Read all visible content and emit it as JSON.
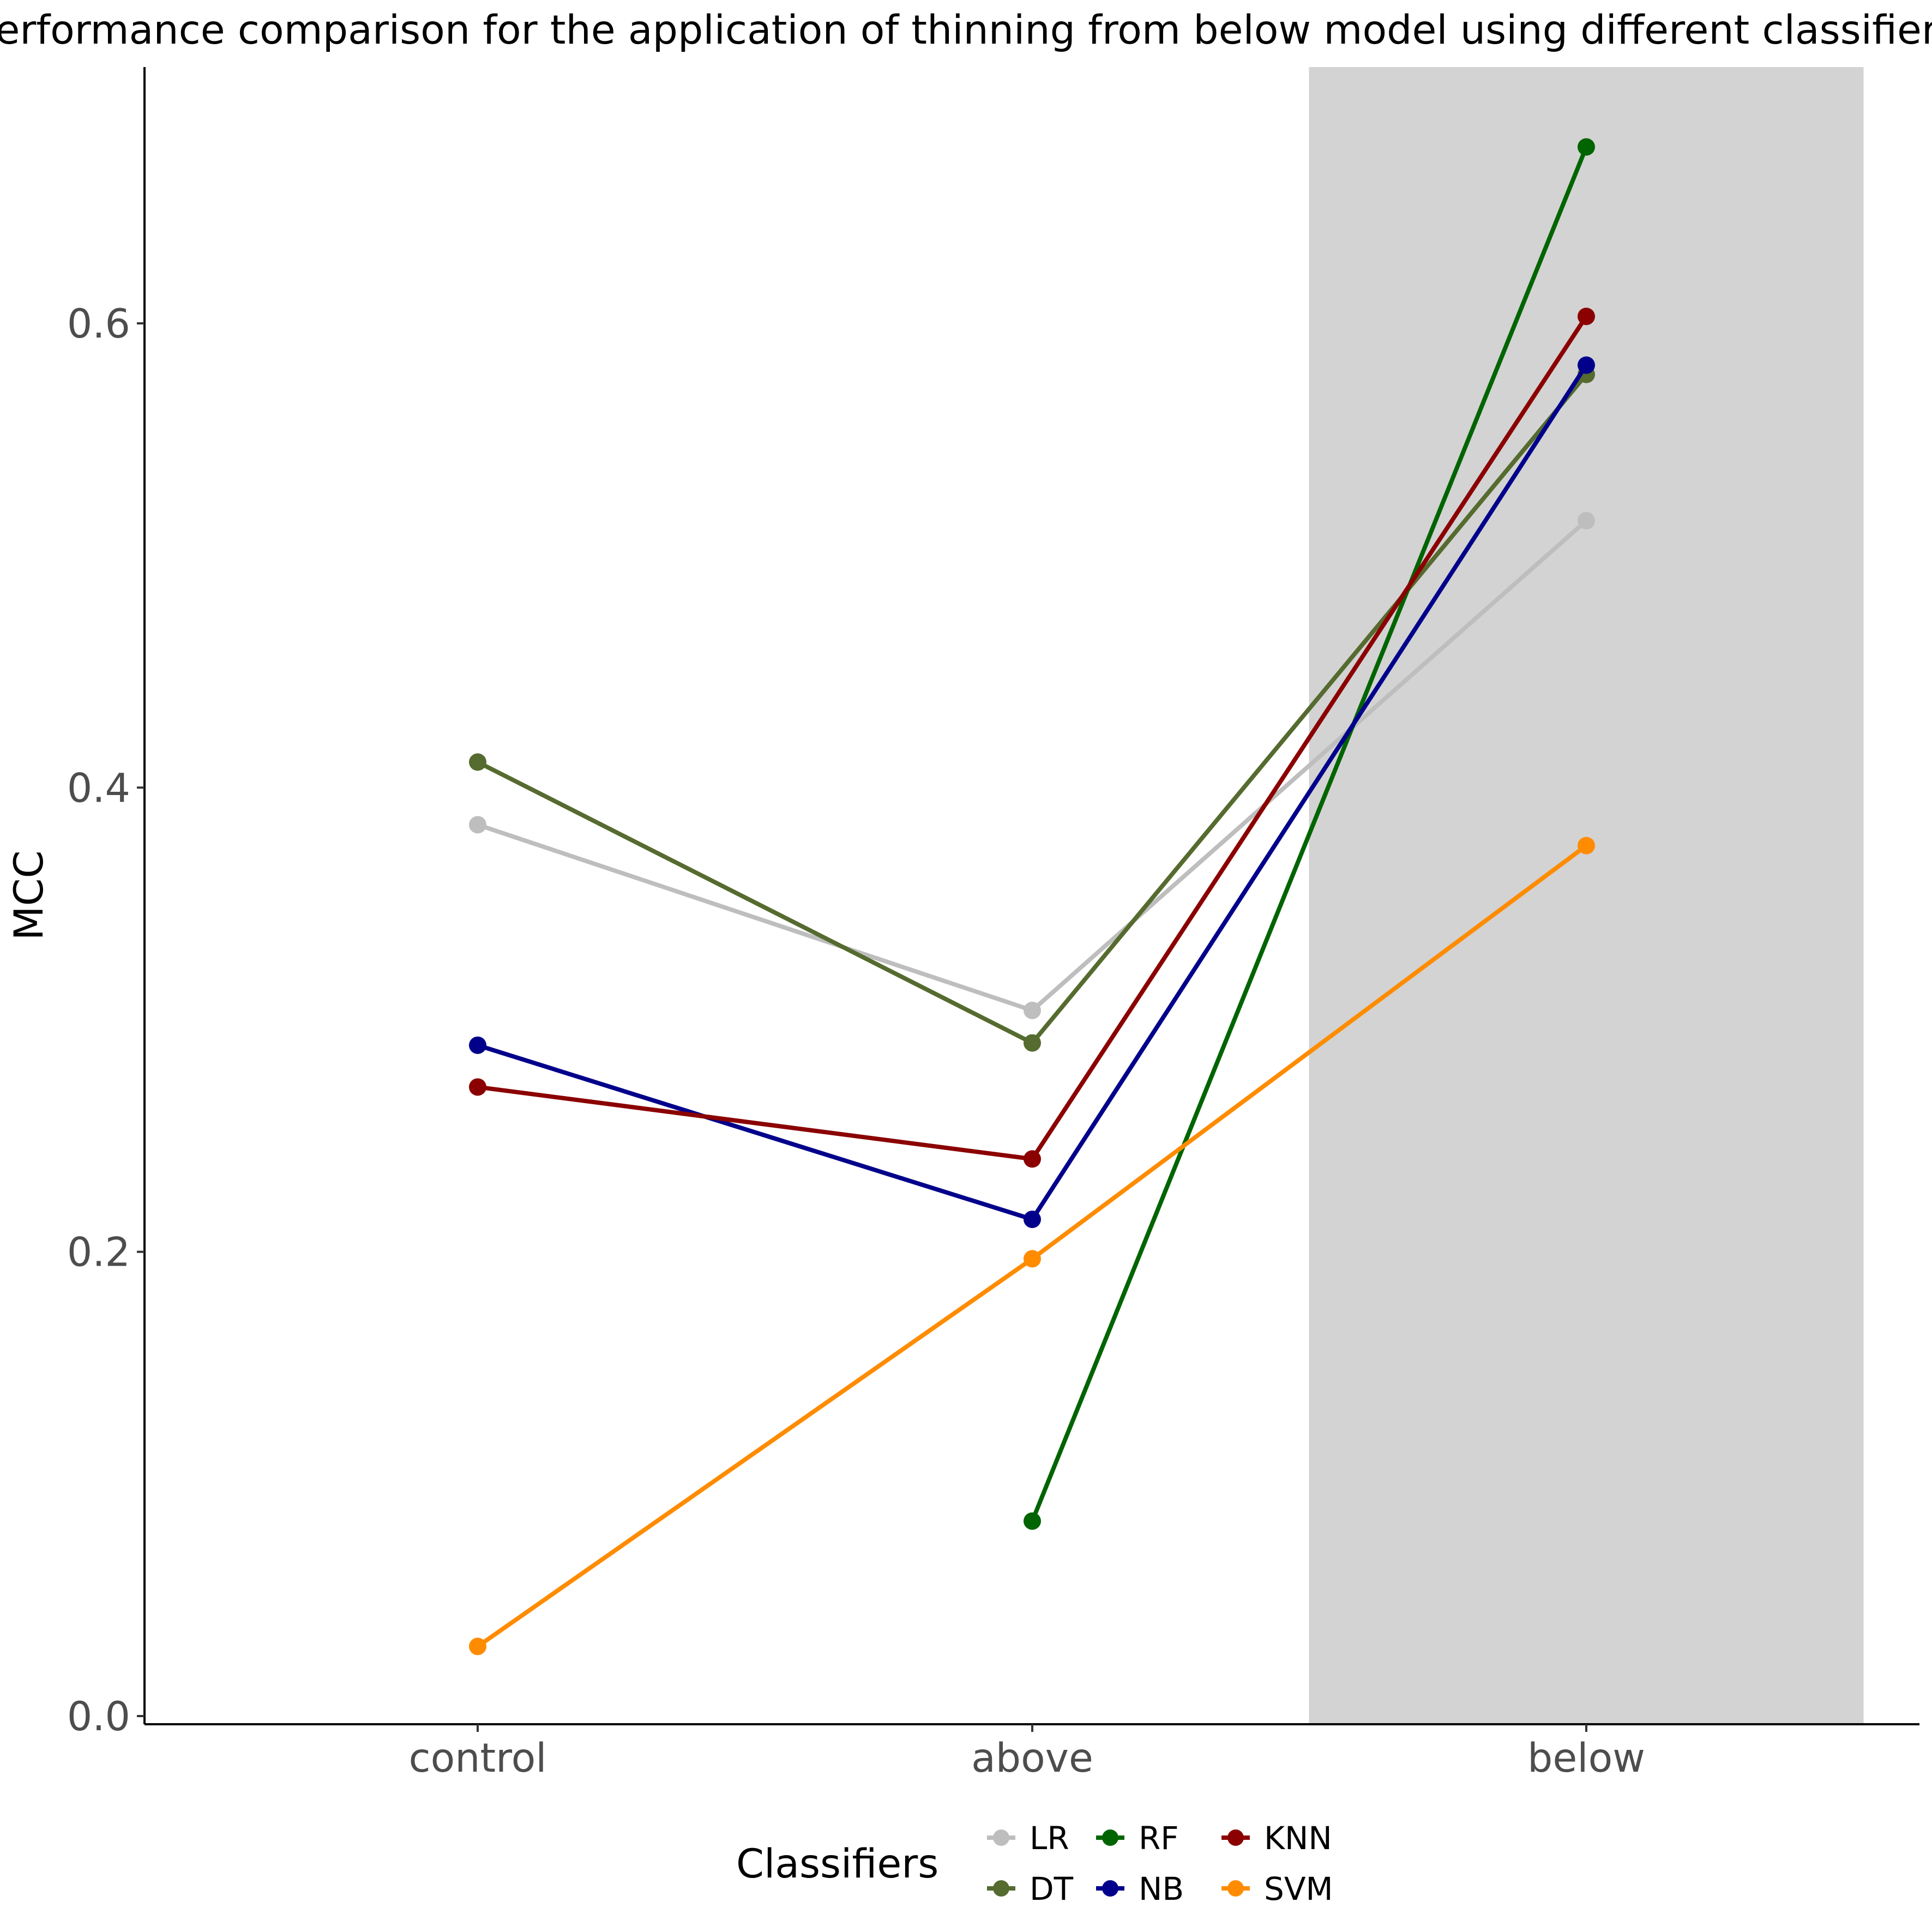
{
  "chart_data": {
    "type": "line",
    "title": "Performance comparison for the application of thinning from below model using different classifiers",
    "xlabel": "",
    "ylabel": "MCC",
    "categories": [
      "control",
      "above",
      "below"
    ],
    "highlighted_category": "below",
    "highlight_color": "#d3d3d3",
    "ylim": [
      0.0,
      0.7
    ],
    "yticks": [
      0.0,
      0.2,
      0.4,
      0.6
    ],
    "ytick_labels": [
      "0.0",
      "0.2",
      "0.4",
      "0.6"
    ],
    "grid": false,
    "legend": {
      "title": "Classifiers",
      "placement": "bottom",
      "order": [
        "LR",
        "DT",
        "RF",
        "NB",
        "KNN",
        "SVM"
      ]
    },
    "series": [
      {
        "name": "LR",
        "color": "#bebebe",
        "values": [
          0.384,
          0.304,
          0.515
        ]
      },
      {
        "name": "DT",
        "color": "#556b2f",
        "values": [
          0.411,
          0.29,
          0.578
        ]
      },
      {
        "name": "RF",
        "color": "#006400",
        "values": [
          null,
          0.084,
          0.676
        ]
      },
      {
        "name": "NB",
        "color": "#00008b",
        "values": [
          0.289,
          0.214,
          0.582
        ]
      },
      {
        "name": "KNN",
        "color": "#8b0000",
        "values": [
          0.271,
          0.24,
          0.603
        ]
      },
      {
        "name": "SVM",
        "color": "#ff8c00",
        "values": [
          0.03,
          0.197,
          0.375
        ]
      }
    ]
  }
}
